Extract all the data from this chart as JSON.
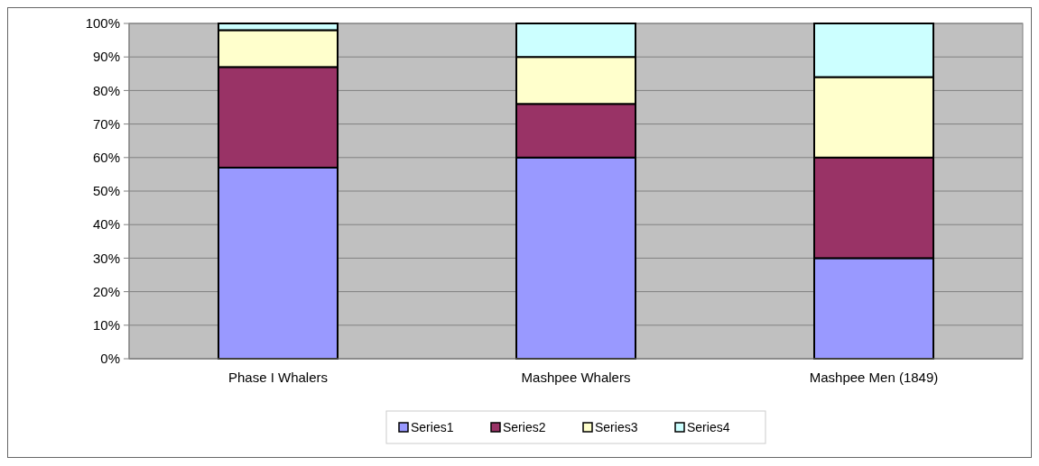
{
  "chart_data": {
    "type": "bar",
    "stacked": true,
    "categories": [
      "Phase I Whalers",
      "Mashpee Whalers",
      "Mashpee Men (1849)"
    ],
    "series": [
      {
        "name": "Series1",
        "color": "#9999ff",
        "values": [
          57,
          60,
          30
        ]
      },
      {
        "name": "Series2",
        "color": "#993366",
        "values": [
          30,
          16,
          30
        ]
      },
      {
        "name": "Series3",
        "color": "#ffffcc",
        "values": [
          11,
          14,
          24
        ]
      },
      {
        "name": "Series4",
        "color": "#ccffff",
        "values": [
          2,
          10,
          16
        ]
      }
    ],
    "ylim": [
      0,
      100
    ],
    "yticks": [
      {
        "value": 0,
        "label": "0%"
      },
      {
        "value": 10,
        "label": "10%"
      },
      {
        "value": 20,
        "label": "20%"
      },
      {
        "value": 30,
        "label": "30%"
      },
      {
        "value": 40,
        "label": "40%"
      },
      {
        "value": 50,
        "label": "50%"
      },
      {
        "value": 60,
        "label": "60%"
      },
      {
        "value": 70,
        "label": "70%"
      },
      {
        "value": 80,
        "label": "80%"
      },
      {
        "value": 90,
        "label": "90%"
      },
      {
        "value": 100,
        "label": "100%"
      }
    ],
    "grid": "y",
    "legend": "bottom"
  }
}
